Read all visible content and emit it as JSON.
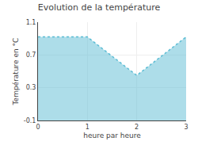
{
  "chart_data": {
    "type": "area",
    "title": "Evolution de la température",
    "x_label": "heure par heure",
    "y_label": "Température en °C",
    "x": [
      0,
      1,
      2,
      3
    ],
    "values": [
      0.92,
      0.92,
      0.45,
      0.92
    ],
    "color": "#5bbcd4",
    "line_style": "dotted",
    "xlim": [
      0,
      3
    ],
    "ylim": [
      -0.1,
      1.1
    ],
    "xticks": [
      0,
      1,
      2,
      3
    ],
    "yticks": [
      -0.1,
      0.3,
      0.7,
      1.1
    ],
    "grid": true
  }
}
